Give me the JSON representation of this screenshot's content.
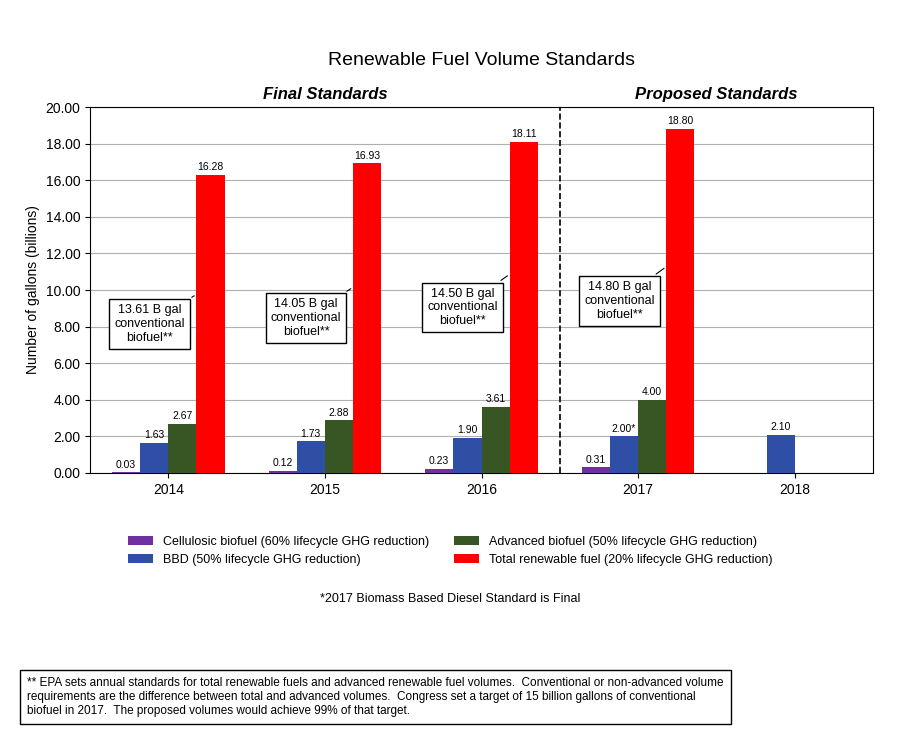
{
  "chart_data": {
    "type": "bar",
    "title": "Renewable Fuel Volume Standards",
    "y_label": "Number of gallons (billions)",
    "categories": [
      "2014",
      "2015",
      "2016",
      "2017",
      "2018"
    ],
    "series": [
      {
        "name": "Cellulosic biofuel (60% lifecycle GHG reduction)",
        "color": "#7030A0",
        "values": [
          0.03,
          0.12,
          0.23,
          0.31,
          null
        ],
        "value_labels": [
          "0.03",
          "0.12",
          "0.23",
          "0.31",
          null
        ]
      },
      {
        "name": "BBD (50% lifecycle GHG reduction)",
        "color": "#2E4FA5",
        "values": [
          1.63,
          1.73,
          1.9,
          2.0,
          2.1
        ],
        "value_labels": [
          "1.63",
          "1.73",
          "1.90",
          "2.00*",
          "2.10"
        ]
      },
      {
        "name": "Advanced biofuel (50% lifecycle GHG reduction)",
        "color": "#375623",
        "values": [
          2.67,
          2.88,
          3.61,
          4.0,
          null
        ],
        "value_labels": [
          "2.67",
          "2.88",
          "3.61",
          "4.00",
          null
        ]
      },
      {
        "name": "Total renewable fuel (20% lifecycle GHG reduction)",
        "color": "#FF0000",
        "values": [
          16.28,
          16.93,
          18.11,
          18.8,
          null
        ],
        "value_labels": [
          "16.28",
          "16.93",
          "18.11",
          "18.80",
          null
        ]
      }
    ],
    "data_labels": true,
    "ylim": [
      0.0,
      20.0
    ],
    "yticks": [
      {
        "value": 0.0,
        "label": "0.00"
      },
      {
        "value": 2.0,
        "label": "2.00"
      },
      {
        "value": 4.0,
        "label": "4.00"
      },
      {
        "value": 6.0,
        "label": "6.00"
      },
      {
        "value": 8.0,
        "label": "8.00"
      },
      {
        "value": 10.0,
        "label": "10.00"
      },
      {
        "value": 12.0,
        "label": "12.00"
      },
      {
        "value": 14.0,
        "label": "14.00"
      },
      {
        "value": 16.0,
        "label": "16.00"
      },
      {
        "value": 18.0,
        "label": "18.00"
      },
      {
        "value": 20.0,
        "label": "20.00"
      }
    ],
    "grid": true,
    "legend": "upper center",
    "regions": [
      {
        "label": "Final Standards",
        "categories": [
          "2014",
          "2015",
          "2016"
        ]
      },
      {
        "label": "Proposed Standards",
        "categories": [
          "2017",
          "2018"
        ]
      }
    ],
    "annotations": [
      {
        "category": "2014",
        "text": "13.61 B gal\nconventional\nbiofuel**"
      },
      {
        "category": "2015",
        "text": "14.05 B gal\nconventional\nbiofuel**"
      },
      {
        "category": "2016",
        "text": "14.50 B gal\nconventional\nbiofuel**"
      },
      {
        "category": "2017",
        "text": "14.80 B gal\nconventional\nbiofuel**"
      }
    ],
    "note": "*2017 Biomass Based Diesel Standard is Final",
    "footnote": "** EPA sets annual standards for total renewable fuels and advanced renewable fuel volumes.  Conventional or non-advanced volume\nrequirements are the difference between total and advanced volumes.  Congress set a target of 15 billion gallons of conventional\nbiofuel in 2017.  The proposed volumes would achieve 99% of that target."
  }
}
